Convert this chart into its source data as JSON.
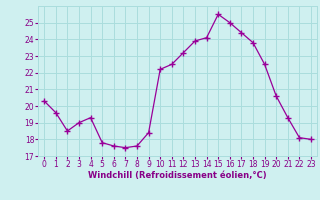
{
  "x": [
    0,
    1,
    2,
    3,
    4,
    5,
    6,
    7,
    8,
    9,
    10,
    11,
    12,
    13,
    14,
    15,
    16,
    17,
    18,
    19,
    20,
    21,
    22,
    23
  ],
  "y": [
    20.3,
    19.6,
    18.5,
    19.0,
    19.3,
    17.8,
    17.6,
    17.5,
    17.6,
    18.4,
    22.2,
    22.5,
    23.2,
    23.9,
    24.1,
    25.5,
    25.0,
    24.4,
    23.8,
    22.5,
    20.6,
    19.3,
    18.1,
    18.0
  ],
  "line_color": "#990099",
  "marker": "+",
  "marker_size": 4,
  "bg_color": "#cff0f0",
  "grid_color": "#aadddd",
  "xlabel": "Windchill (Refroidissement éolien,°C)",
  "xlabel_color": "#880088",
  "tick_color": "#880088",
  "label_fontsize": 5.5,
  "xlabel_fontsize": 6.0,
  "ylim": [
    17,
    26
  ],
  "yticks": [
    17,
    18,
    19,
    20,
    21,
    22,
    23,
    24,
    25
  ],
  "xlim": [
    -0.5,
    23.5
  ],
  "xticks": [
    0,
    1,
    2,
    3,
    4,
    5,
    6,
    7,
    8,
    9,
    10,
    11,
    12,
    13,
    14,
    15,
    16,
    17,
    18,
    19,
    20,
    21,
    22,
    23
  ]
}
